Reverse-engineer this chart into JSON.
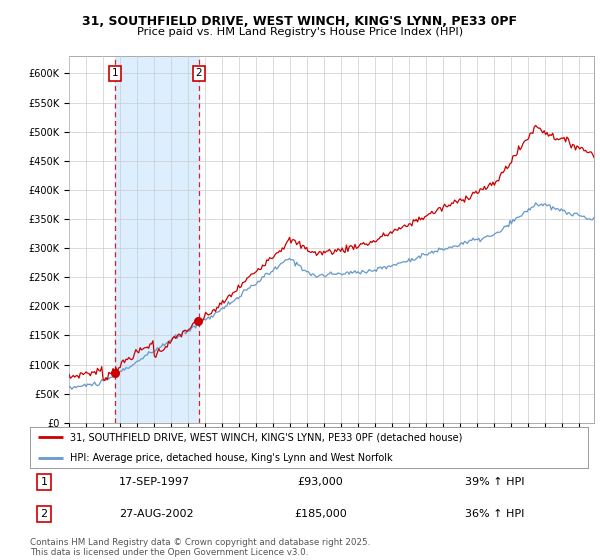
{
  "title_line1": "31, SOUTHFIELD DRIVE, WEST WINCH, KING'S LYNN, PE33 0PF",
  "title_line2": "Price paid vs. HM Land Registry's House Price Index (HPI)",
  "legend_label1": "31, SOUTHFIELD DRIVE, WEST WINCH, KING'S LYNN, PE33 0PF (detached house)",
  "legend_label2": "HPI: Average price, detached house, King's Lynn and West Norfolk",
  "line1_color": "#cc0000",
  "line2_color": "#6699cc",
  "shade_color": "#ddeeff",
  "annotation1_label": "1",
  "annotation1_date": "17-SEP-1997",
  "annotation1_price": "£93,000",
  "annotation1_hpi": "39% ↑ HPI",
  "annotation2_label": "2",
  "annotation2_date": "27-AUG-2002",
  "annotation2_price": "£185,000",
  "annotation2_hpi": "36% ↑ HPI",
  "footer": "Contains HM Land Registry data © Crown copyright and database right 2025.\nThis data is licensed under the Open Government Licence v3.0.",
  "ylim": [
    0,
    630000
  ],
  "yticks": [
    0,
    50000,
    100000,
    150000,
    200000,
    250000,
    300000,
    350000,
    400000,
    450000,
    500000,
    550000,
    600000
  ],
  "ytick_labels": [
    "£0",
    "£50K",
    "£100K",
    "£150K",
    "£200K",
    "£250K",
    "£300K",
    "£350K",
    "£400K",
    "£450K",
    "£500K",
    "£550K",
    "£600K"
  ],
  "purchase1_year": 1997.72,
  "purchase1_value": 93000,
  "purchase2_year": 2002.65,
  "purchase2_value": 185000,
  "xlim_start": 1995.0,
  "xlim_end": 2025.9,
  "background_color": "#ffffff",
  "grid_color": "#cccccc"
}
